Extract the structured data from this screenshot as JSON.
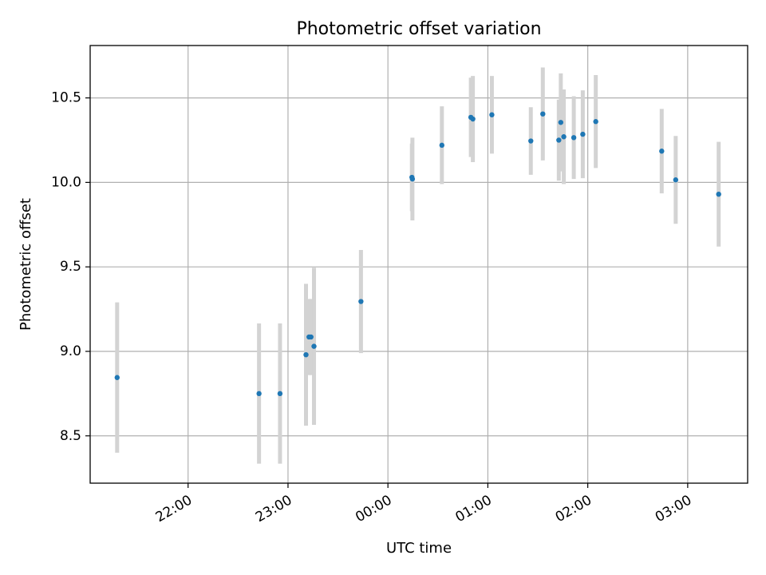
{
  "chart_data": {
    "type": "scatter",
    "title": "Photometric offset variation",
    "xlabel": "UTC time",
    "ylabel": "Photometric offset",
    "x_unit": "hours relative to 00:00 UTC",
    "xlim": [
      -2.98,
      3.6
    ],
    "ylim": [
      8.22,
      10.81
    ],
    "grid": true,
    "x_ticks": [
      {
        "value": -2,
        "label": "22:00"
      },
      {
        "value": -1,
        "label": "23:00"
      },
      {
        "value": 0,
        "label": "00:00"
      },
      {
        "value": 1,
        "label": "01:00"
      },
      {
        "value": 2,
        "label": "02:00"
      },
      {
        "value": 3,
        "label": "03:00"
      }
    ],
    "y_ticks": [
      {
        "value": 8.5,
        "label": "8.5"
      },
      {
        "value": 9.0,
        "label": "9.0"
      },
      {
        "value": 9.5,
        "label": "9.5"
      },
      {
        "value": 10.0,
        "label": "10.0"
      },
      {
        "value": 10.5,
        "label": "10.5"
      }
    ],
    "marker_color": "#1f77b4",
    "errorbar_color": "#d3d3d3",
    "series": [
      {
        "name": "photometric offset",
        "points": [
          {
            "x": -2.71,
            "y": 8.845,
            "err": 0.445
          },
          {
            "x": -1.29,
            "y": 8.75,
            "err": 0.415
          },
          {
            "x": -1.08,
            "y": 8.75,
            "err": 0.415
          },
          {
            "x": -0.82,
            "y": 8.98,
            "err": 0.42
          },
          {
            "x": -0.79,
            "y": 9.085,
            "err": 0.225
          },
          {
            "x": -0.77,
            "y": 9.085,
            "err": 0.225
          },
          {
            "x": -0.74,
            "y": 9.03,
            "err": 0.465
          },
          {
            "x": -0.27,
            "y": 9.295,
            "err": 0.305
          },
          {
            "x": 0.24,
            "y": 10.03,
            "err": 0.2
          },
          {
            "x": 0.245,
            "y": 10.02,
            "err": 0.245
          },
          {
            "x": 0.54,
            "y": 10.22,
            "err": 0.23
          },
          {
            "x": 0.83,
            "y": 10.385,
            "err": 0.235
          },
          {
            "x": 0.85,
            "y": 10.375,
            "err": 0.255
          },
          {
            "x": 1.04,
            "y": 10.4,
            "err": 0.23
          },
          {
            "x": 1.43,
            "y": 10.245,
            "err": 0.2
          },
          {
            "x": 1.55,
            "y": 10.405,
            "err": 0.275
          },
          {
            "x": 1.71,
            "y": 10.25,
            "err": 0.24
          },
          {
            "x": 1.73,
            "y": 10.355,
            "err": 0.29
          },
          {
            "x": 1.76,
            "y": 10.27,
            "err": 0.28
          },
          {
            "x": 1.86,
            "y": 10.265,
            "err": 0.245
          },
          {
            "x": 1.95,
            "y": 10.285,
            "err": 0.26
          },
          {
            "x": 2.08,
            "y": 10.36,
            "err": 0.275
          },
          {
            "x": 2.74,
            "y": 10.185,
            "err": 0.25
          },
          {
            "x": 2.88,
            "y": 10.015,
            "err": 0.26
          },
          {
            "x": 3.31,
            "y": 9.93,
            "err": 0.31
          }
        ]
      }
    ]
  }
}
